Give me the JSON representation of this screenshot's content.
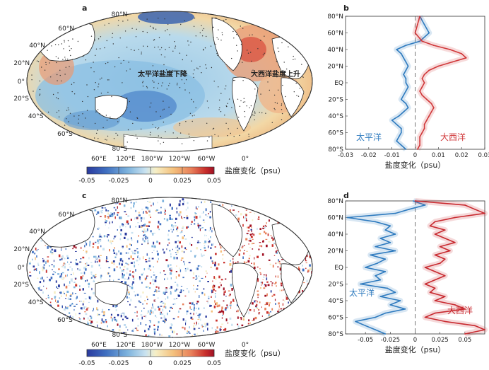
{
  "panels": [
    {
      "letter": "a",
      "annotations": [
        "太平洋盐度下降",
        "大西洋盐度上升"
      ]
    },
    {
      "letter": "b"
    },
    {
      "letter": "c"
    },
    {
      "letter": "d"
    }
  ],
  "map_axes": {
    "lon_ticks": [
      "60°E",
      "120°E",
      "180°W",
      "120°W",
      "60°W",
      "0°"
    ],
    "lat_ticks": [
      "80°N",
      "60°N",
      "40°N",
      "20°N",
      "0°",
      "20°S",
      "40°S",
      "60°S",
      "80°S"
    ]
  },
  "colorbar": {
    "label": "盐度变化（psu）",
    "ticks": [
      "-0.05",
      "-0.025",
      "0",
      "0.025",
      "0.05"
    ],
    "range": [
      -0.05,
      0.05
    ],
    "colors": [
      "#2a3a9e",
      "#3f6fc0",
      "#7db3dd",
      "#c9e2f0",
      "#f6efc6",
      "#f4c07c",
      "#e8805a",
      "#c9302c",
      "#a01024"
    ]
  },
  "chart_data": [
    {
      "panel": "b",
      "type": "line",
      "xlabel": "盐度变化（psu）",
      "x_ticks": [
        "-0.03",
        "-0.02",
        "-0.01",
        "0",
        "0.01",
        "0.02",
        "0.03"
      ],
      "y_ticks": [
        "80°N",
        "60°N",
        "40°N",
        "20°N",
        "EQ",
        "20°S",
        "40°S",
        "60°S",
        "80°S"
      ],
      "xlim": [
        -0.03,
        0.03
      ],
      "ylim": [
        -80,
        80
      ],
      "lat": [
        80,
        70,
        60,
        50,
        45,
        40,
        35,
        30,
        25,
        20,
        15,
        10,
        5,
        0,
        -5,
        -10,
        -15,
        -20,
        -25,
        -30,
        -35,
        -40,
        -45,
        -50,
        -55,
        -60,
        -65,
        -70,
        -75,
        -80
      ],
      "series": [
        {
          "name": "太平洋",
          "color": "#2f7bbf",
          "values": [
            0.002,
            0.004,
            0.006,
            0.002,
            -0.004,
            -0.008,
            -0.006,
            -0.005,
            -0.004,
            -0.003,
            -0.004,
            -0.005,
            -0.004,
            -0.004,
            -0.003,
            -0.004,
            -0.005,
            -0.006,
            -0.004,
            -0.003,
            -0.005,
            -0.007,
            -0.01,
            -0.008,
            -0.006,
            -0.006,
            -0.007,
            -0.008,
            -0.006,
            -0.004
          ]
        },
        {
          "name": "大西洋",
          "color": "#d0383a",
          "values": [
            0.002,
            0.001,
            0.0,
            0.003,
            0.008,
            0.015,
            0.02,
            0.022,
            0.016,
            0.01,
            0.006,
            0.004,
            0.003,
            0.004,
            0.003,
            0.002,
            0.003,
            0.005,
            0.007,
            0.008,
            0.007,
            0.006,
            0.005,
            0.004,
            0.004,
            0.003,
            0.002,
            0.002,
            0.002,
            0.001
          ]
        }
      ]
    },
    {
      "panel": "d",
      "type": "line",
      "xlabel": "盐度变化（psu）",
      "x_ticks": [
        "-0.05",
        "-0.025",
        "0",
        "0.025",
        "0.05"
      ],
      "y_ticks": [
        "80°N",
        "60°N",
        "40°N",
        "20°N",
        "EQ",
        "20°S",
        "40°S",
        "60°S",
        "80°S"
      ],
      "xlim": [
        -0.07,
        0.07
      ],
      "ylim": [
        -80,
        80
      ],
      "lat": [
        80,
        75,
        70,
        65,
        60,
        55,
        50,
        45,
        40,
        35,
        30,
        25,
        20,
        15,
        10,
        5,
        0,
        -5,
        -10,
        -15,
        -20,
        -25,
        -30,
        -35,
        -40,
        -45,
        -50,
        -55,
        -60,
        -65,
        -70,
        -75,
        -80
      ],
      "series": [
        {
          "name": "太平洋",
          "color": "#2f7bbf",
          "values": [
            -0.002,
            0.01,
            -0.006,
            -0.02,
            -0.068,
            -0.04,
            -0.025,
            -0.03,
            -0.02,
            -0.035,
            -0.025,
            -0.04,
            -0.02,
            -0.045,
            -0.03,
            -0.038,
            -0.05,
            -0.03,
            -0.04,
            -0.035,
            -0.055,
            -0.028,
            -0.02,
            -0.035,
            -0.015,
            -0.025,
            -0.01,
            -0.03,
            -0.04,
            -0.06,
            -0.05,
            -0.04,
            -0.03
          ]
        },
        {
          "name": "大西洋",
          "color": "#c82a30",
          "values": [
            0.0,
            0.05,
            0.06,
            0.07,
            0.04,
            0.02,
            0.015,
            0.03,
            0.02,
            0.03,
            0.04,
            0.025,
            0.035,
            0.02,
            0.03,
            0.025,
            0.01,
            0.02,
            0.03,
            0.02,
            0.01,
            0.02,
            0.015,
            0.03,
            0.02,
            0.04,
            0.05,
            0.02,
            0.01,
            0.03,
            0.06,
            0.07,
            0.05
          ]
        }
      ]
    }
  ]
}
